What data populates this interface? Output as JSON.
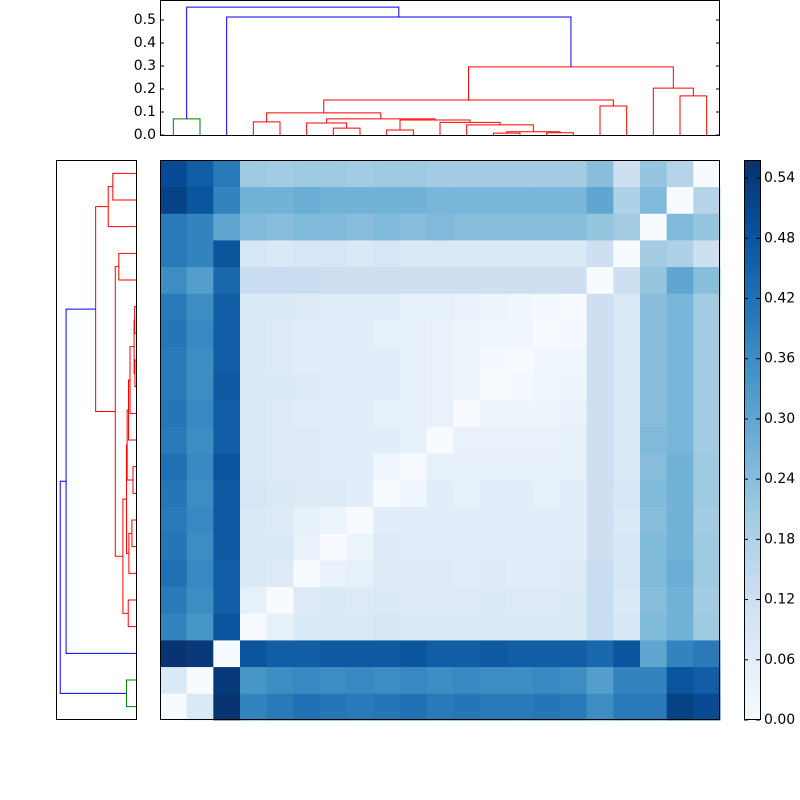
{
  "chart_data": {
    "type": "heatmap",
    "origin": "lower",
    "colormap": [
      "#f7fbff",
      "#deebf7",
      "#c6dbef",
      "#9ecae1",
      "#6baed6",
      "#4292c6",
      "#2171b5",
      "#08519c",
      "#08306b"
    ],
    "clim": [
      0,
      0.558
    ],
    "cticks": [
      {
        "value": 0,
        "label": "0.00"
      },
      0.06,
      0.12,
      0.18,
      0.24,
      {
        "value": 0.3,
        "label": "0.30"
      },
      0.36,
      0.42,
      0.48,
      0.54
    ],
    "matrix": [
      [
        0,
        0.08,
        0.55,
        0.38,
        0.4,
        0.42,
        0.41,
        0.4,
        0.41,
        0.42,
        0.4,
        0.41,
        0.4,
        0.4,
        0.41,
        0.4,
        0.36,
        0.4,
        0.4,
        0.52,
        0.5
      ],
      [
        0.08,
        0,
        0.54,
        0.34,
        0.36,
        0.37,
        0.36,
        0.37,
        0.36,
        0.37,
        0.36,
        0.37,
        0.36,
        0.36,
        0.37,
        0.36,
        0.32,
        0.38,
        0.38,
        0.48,
        0.46
      ],
      [
        0.55,
        0.54,
        0,
        0.48,
        0.46,
        0.46,
        0.47,
        0.47,
        0.47,
        0.48,
        0.46,
        0.46,
        0.47,
        0.46,
        0.46,
        0.46,
        0.44,
        0.48,
        0.3,
        0.38,
        0.4
      ],
      [
        0.38,
        0.34,
        0.48,
        0,
        0.05,
        0.08,
        0.08,
        0.08,
        0.09,
        0.08,
        0.08,
        0.08,
        0.08,
        0.08,
        0.08,
        0.08,
        0.13,
        0.09,
        0.25,
        0.27,
        0.21
      ],
      [
        0.4,
        0.36,
        0.46,
        0.05,
        0,
        0.07,
        0.08,
        0.07,
        0.08,
        0.07,
        0.07,
        0.07,
        0.08,
        0.07,
        0.07,
        0.08,
        0.13,
        0.08,
        0.24,
        0.27,
        0.2
      ],
      [
        0.42,
        0.37,
        0.46,
        0.08,
        0.07,
        0,
        0.04,
        0.05,
        0.07,
        0.07,
        0.07,
        0.06,
        0.07,
        0.06,
        0.06,
        0.07,
        0.13,
        0.09,
        0.25,
        0.28,
        0.21
      ],
      [
        0.41,
        0.36,
        0.47,
        0.08,
        0.08,
        0.04,
        0,
        0.03,
        0.07,
        0.06,
        0.06,
        0.06,
        0.06,
        0.06,
        0.06,
        0.06,
        0.12,
        0.09,
        0.25,
        0.27,
        0.21
      ],
      [
        0.4,
        0.37,
        0.47,
        0.08,
        0.07,
        0.05,
        0.03,
        0,
        0.06,
        0.06,
        0.06,
        0.06,
        0.06,
        0.06,
        0.06,
        0.06,
        0.12,
        0.08,
        0.24,
        0.27,
        0.2
      ],
      [
        0.41,
        0.36,
        0.47,
        0.09,
        0.08,
        0.07,
        0.07,
        0.06,
        0,
        0.02,
        0.06,
        0.05,
        0.06,
        0.06,
        0.05,
        0.06,
        0.12,
        0.09,
        0.25,
        0.27,
        0.21
      ],
      [
        0.42,
        0.37,
        0.48,
        0.08,
        0.07,
        0.07,
        0.06,
        0.06,
        0.02,
        0,
        0.05,
        0.05,
        0.05,
        0.05,
        0.05,
        0.05,
        0.12,
        0.08,
        0.24,
        0.27,
        0.21
      ],
      [
        0.4,
        0.36,
        0.46,
        0.08,
        0.07,
        0.07,
        0.06,
        0.06,
        0.06,
        0.05,
        0,
        0.04,
        0.04,
        0.04,
        0.04,
        0.05,
        0.12,
        0.08,
        0.25,
        0.26,
        0.2
      ],
      [
        0.41,
        0.37,
        0.46,
        0.08,
        0.07,
        0.06,
        0.06,
        0.06,
        0.05,
        0.05,
        0.04,
        0,
        0.03,
        0.03,
        0.03,
        0.04,
        0.12,
        0.08,
        0.24,
        0.26,
        0.2
      ],
      [
        0.4,
        0.36,
        0.47,
        0.08,
        0.08,
        0.07,
        0.06,
        0.06,
        0.06,
        0.05,
        0.04,
        0.03,
        0,
        0.01,
        0.02,
        0.03,
        0.12,
        0.08,
        0.24,
        0.26,
        0.2
      ],
      [
        0.4,
        0.36,
        0.46,
        0.08,
        0.07,
        0.06,
        0.06,
        0.06,
        0.06,
        0.05,
        0.04,
        0.03,
        0.01,
        0,
        0.02,
        0.02,
        0.12,
        0.08,
        0.24,
        0.26,
        0.2
      ],
      [
        0.41,
        0.37,
        0.46,
        0.08,
        0.07,
        0.06,
        0.06,
        0.06,
        0.05,
        0.05,
        0.04,
        0.03,
        0.02,
        0.02,
        0,
        0.01,
        0.12,
        0.08,
        0.24,
        0.26,
        0.2
      ],
      [
        0.4,
        0.36,
        0.46,
        0.08,
        0.08,
        0.07,
        0.06,
        0.06,
        0.06,
        0.05,
        0.05,
        0.04,
        0.03,
        0.02,
        0.01,
        0,
        0.12,
        0.08,
        0.24,
        0.26,
        0.2
      ],
      [
        0.36,
        0.32,
        0.44,
        0.13,
        0.13,
        0.13,
        0.12,
        0.12,
        0.12,
        0.12,
        0.12,
        0.12,
        0.12,
        0.12,
        0.12,
        0.12,
        0,
        0.12,
        0.22,
        0.3,
        0.24
      ],
      [
        0.4,
        0.38,
        0.48,
        0.09,
        0.08,
        0.09,
        0.09,
        0.08,
        0.09,
        0.08,
        0.08,
        0.08,
        0.08,
        0.08,
        0.08,
        0.08,
        0.12,
        0,
        0.2,
        0.18,
        0.12
      ],
      [
        0.4,
        0.38,
        0.3,
        0.25,
        0.24,
        0.25,
        0.25,
        0.24,
        0.25,
        0.24,
        0.25,
        0.24,
        0.24,
        0.24,
        0.24,
        0.24,
        0.22,
        0.2,
        0,
        0.25,
        0.22
      ],
      [
        0.52,
        0.48,
        0.38,
        0.27,
        0.27,
        0.28,
        0.27,
        0.27,
        0.27,
        0.27,
        0.26,
        0.26,
        0.26,
        0.26,
        0.26,
        0.26,
        0.3,
        0.18,
        0.25,
        0,
        0.17
      ],
      [
        0.5,
        0.46,
        0.4,
        0.21,
        0.2,
        0.21,
        0.21,
        0.2,
        0.21,
        0.21,
        0.2,
        0.2,
        0.2,
        0.2,
        0.2,
        0.2,
        0.24,
        0.12,
        0.22,
        0.17,
        0
      ]
    ],
    "dendrogram": {
      "xlim": [
        -0.5,
        20.5
      ],
      "ylim": [
        0,
        0.587
      ],
      "yticks": [
        {
          "value": 0,
          "label": "0.0"
        },
        0.1,
        0.2,
        0.3,
        0.4,
        0.5
      ],
      "links": [
        {
          "x": [
            0,
            1
          ],
          "h": [
            0,
            0,
            0.07
          ],
          "color": "#008000"
        },
        {
          "x": [
            3,
            4
          ],
          "h": [
            0,
            0,
            0.057
          ],
          "color": "#ff0000"
        },
        {
          "x": [
            6,
            7
          ],
          "h": [
            0,
            0,
            0.03
          ],
          "color": "#ff0000"
        },
        {
          "x": [
            5,
            6.5
          ],
          "h": [
            0,
            0.03,
            0.052
          ],
          "color": "#ff0000"
        },
        {
          "x": [
            8,
            9
          ],
          "h": [
            0,
            0,
            0.022
          ],
          "color": "#ff0000"
        },
        {
          "x": [
            14,
            15
          ],
          "h": [
            0,
            0,
            0.01
          ],
          "color": "#ff0000"
        },
        {
          "x": [
            12,
            13
          ],
          "h": [
            0,
            0,
            0.008
          ],
          "color": "#ff0000"
        },
        {
          "x": [
            12.5,
            14.5
          ],
          "h": [
            0.008,
            0.01,
            0.014
          ],
          "color": "#ff0000"
        },
        {
          "x": [
            11,
            13.5
          ],
          "h": [
            0,
            0.014,
            0.044
          ],
          "color": "#ff0000"
        },
        {
          "x": [
            10,
            12.25
          ],
          "h": [
            0,
            0.044,
            0.055
          ],
          "color": "#ff0000"
        },
        {
          "x": [
            8.5,
            11.125
          ],
          "h": [
            0.022,
            0.055,
            0.065
          ],
          "color": "#ff0000"
        },
        {
          "x": [
            5.75,
            9.8125
          ],
          "h": [
            0.052,
            0.065,
            0.07
          ],
          "color": "#ff0000"
        },
        {
          "x": [
            3.5,
            7.78125
          ],
          "h": [
            0.057,
            0.07,
            0.096
          ],
          "color": "#ff0000"
        },
        {
          "x": [
            16,
            17
          ],
          "h": [
            0,
            0,
            0.126
          ],
          "color": "#ff0000"
        },
        {
          "x": [
            5.640625,
            16.5
          ],
          "h": [
            0.096,
            0.126,
            0.152
          ],
          "color": "#ff0000"
        },
        {
          "x": [
            19,
            20
          ],
          "h": [
            0,
            0,
            0.17
          ],
          "color": "#ff0000"
        },
        {
          "x": [
            18,
            19.5
          ],
          "h": [
            0,
            0.17,
            0.204
          ],
          "color": "#ff0000"
        },
        {
          "x": [
            11.0703125,
            18.75
          ],
          "h": [
            0.152,
            0.204,
            0.296
          ],
          "color": "#ff0000"
        },
        {
          "x": [
            2,
            14.91015625
          ],
          "h": [
            0,
            0.296,
            0.513
          ],
          "color": "#0000ff"
        },
        {
          "x": [
            0.5,
            8.455078125
          ],
          "h": [
            0.07,
            0.513,
            0.556
          ],
          "color": "#0000ff"
        }
      ]
    }
  }
}
